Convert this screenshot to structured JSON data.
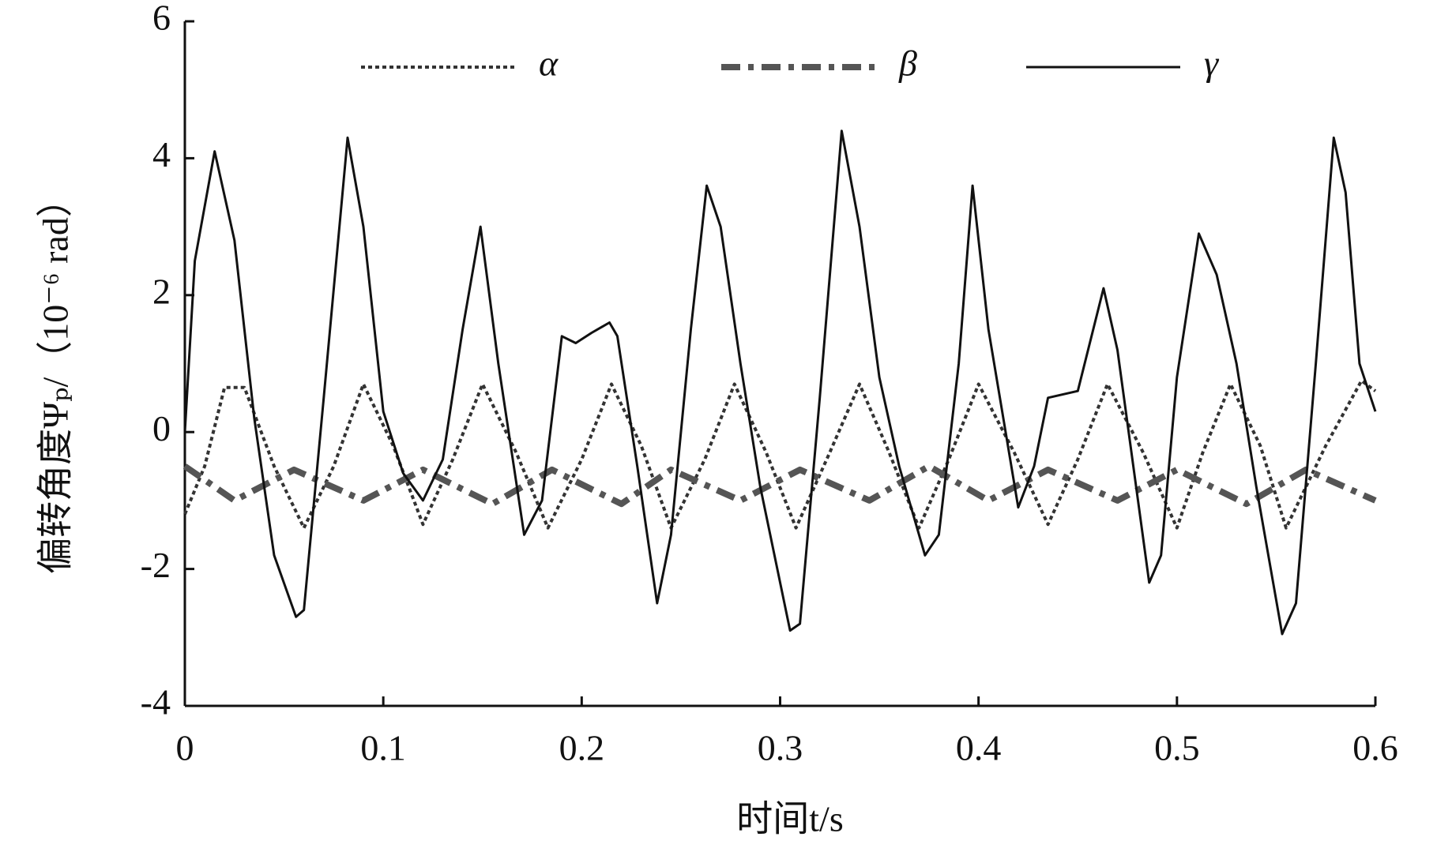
{
  "chart_data": {
    "type": "line",
    "xlabel": "时间t/s",
    "ylabel": "偏转角度Ψₚ/（10⁻⁶ rad）",
    "xlim": [
      0,
      0.6
    ],
    "xticks": [
      0,
      0.1,
      0.2,
      0.3,
      0.4,
      0.5,
      0.6
    ],
    "ylim": [
      -4,
      6
    ],
    "yticks": [
      -4,
      -2,
      0,
      2,
      4,
      6
    ],
    "legend": "top",
    "series": [
      {
        "name": "α",
        "color": "#333333",
        "style": "dotted",
        "x": [
          0,
          0.01,
          0.02,
          0.03,
          0.045,
          0.06,
          0.075,
          0.09,
          0.105,
          0.12,
          0.135,
          0.15,
          0.167,
          0.183,
          0.2,
          0.215,
          0.23,
          0.245,
          0.262,
          0.277,
          0.293,
          0.308,
          0.325,
          0.34,
          0.355,
          0.37,
          0.385,
          0.4,
          0.418,
          0.435,
          0.45,
          0.465,
          0.483,
          0.5,
          0.513,
          0.527,
          0.542,
          0.555,
          0.575,
          0.593,
          0.6
        ],
        "values": [
          -1.2,
          -0.5,
          0.65,
          0.65,
          -0.5,
          -1.4,
          -0.5,
          0.7,
          -0.2,
          -1.35,
          -0.4,
          0.7,
          -0.3,
          -1.4,
          -0.4,
          0.7,
          -0.2,
          -1.4,
          -0.4,
          0.7,
          -0.3,
          -1.4,
          -0.3,
          0.7,
          -0.3,
          -1.4,
          -0.4,
          0.7,
          -0.3,
          -1.35,
          -0.4,
          0.7,
          -0.3,
          -1.4,
          -0.3,
          0.7,
          -0.2,
          -1.4,
          -0.2,
          0.75,
          0.6
        ]
      },
      {
        "name": "β",
        "color": "#555555",
        "style": "dashdot",
        "x": [
          0,
          0.025,
          0.055,
          0.09,
          0.12,
          0.155,
          0.185,
          0.22,
          0.245,
          0.28,
          0.31,
          0.345,
          0.375,
          0.405,
          0.435,
          0.47,
          0.5,
          0.535,
          0.565,
          0.6
        ],
        "values": [
          -0.5,
          -1.0,
          -0.55,
          -1.0,
          -0.55,
          -1.05,
          -0.55,
          -1.05,
          -0.55,
          -1.0,
          -0.55,
          -1.0,
          -0.5,
          -1.0,
          -0.55,
          -1.0,
          -0.55,
          -1.05,
          -0.55,
          -1.0
        ]
      },
      {
        "name": "γ",
        "color": "#111111",
        "style": "solid",
        "x": [
          0,
          0.005,
          0.015,
          0.025,
          0.035,
          0.045,
          0.056,
          0.06,
          0.07,
          0.082,
          0.09,
          0.1,
          0.11,
          0.12,
          0.13,
          0.14,
          0.149,
          0.158,
          0.171,
          0.18,
          0.19,
          0.197,
          0.205,
          0.214,
          0.218,
          0.228,
          0.238,
          0.245,
          0.255,
          0.263,
          0.27,
          0.28,
          0.29,
          0.305,
          0.31,
          0.32,
          0.331,
          0.34,
          0.35,
          0.36,
          0.373,
          0.38,
          0.39,
          0.397,
          0.405,
          0.42,
          0.428,
          0.435,
          0.45,
          0.463,
          0.47,
          0.478,
          0.486,
          0.492,
          0.5,
          0.511,
          0.52,
          0.53,
          0.54,
          0.553,
          0.56,
          0.57,
          0.579,
          0.585,
          0.592,
          0.6
        ],
        "values": [
          0,
          2.5,
          4.1,
          2.8,
          0.2,
          -1.8,
          -2.7,
          -2.6,
          0.5,
          4.3,
          3.0,
          0.3,
          -0.6,
          -1.0,
          -0.4,
          1.5,
          3.0,
          1.0,
          -1.5,
          -1.0,
          1.4,
          1.3,
          1.45,
          1.6,
          1.4,
          -0.5,
          -2.5,
          -1.5,
          1.5,
          3.6,
          3.0,
          1.0,
          -0.8,
          -2.9,
          -2.8,
          0.5,
          4.4,
          3.0,
          0.8,
          -0.5,
          -1.8,
          -1.5,
          1.0,
          3.6,
          1.5,
          -1.1,
          -0.5,
          0.5,
          0.6,
          2.1,
          1.2,
          -0.5,
          -2.2,
          -1.8,
          0.8,
          2.9,
          2.3,
          1.0,
          -0.8,
          -2.95,
          -2.5,
          1.0,
          4.3,
          3.5,
          1.0,
          0.3
        ]
      }
    ]
  }
}
